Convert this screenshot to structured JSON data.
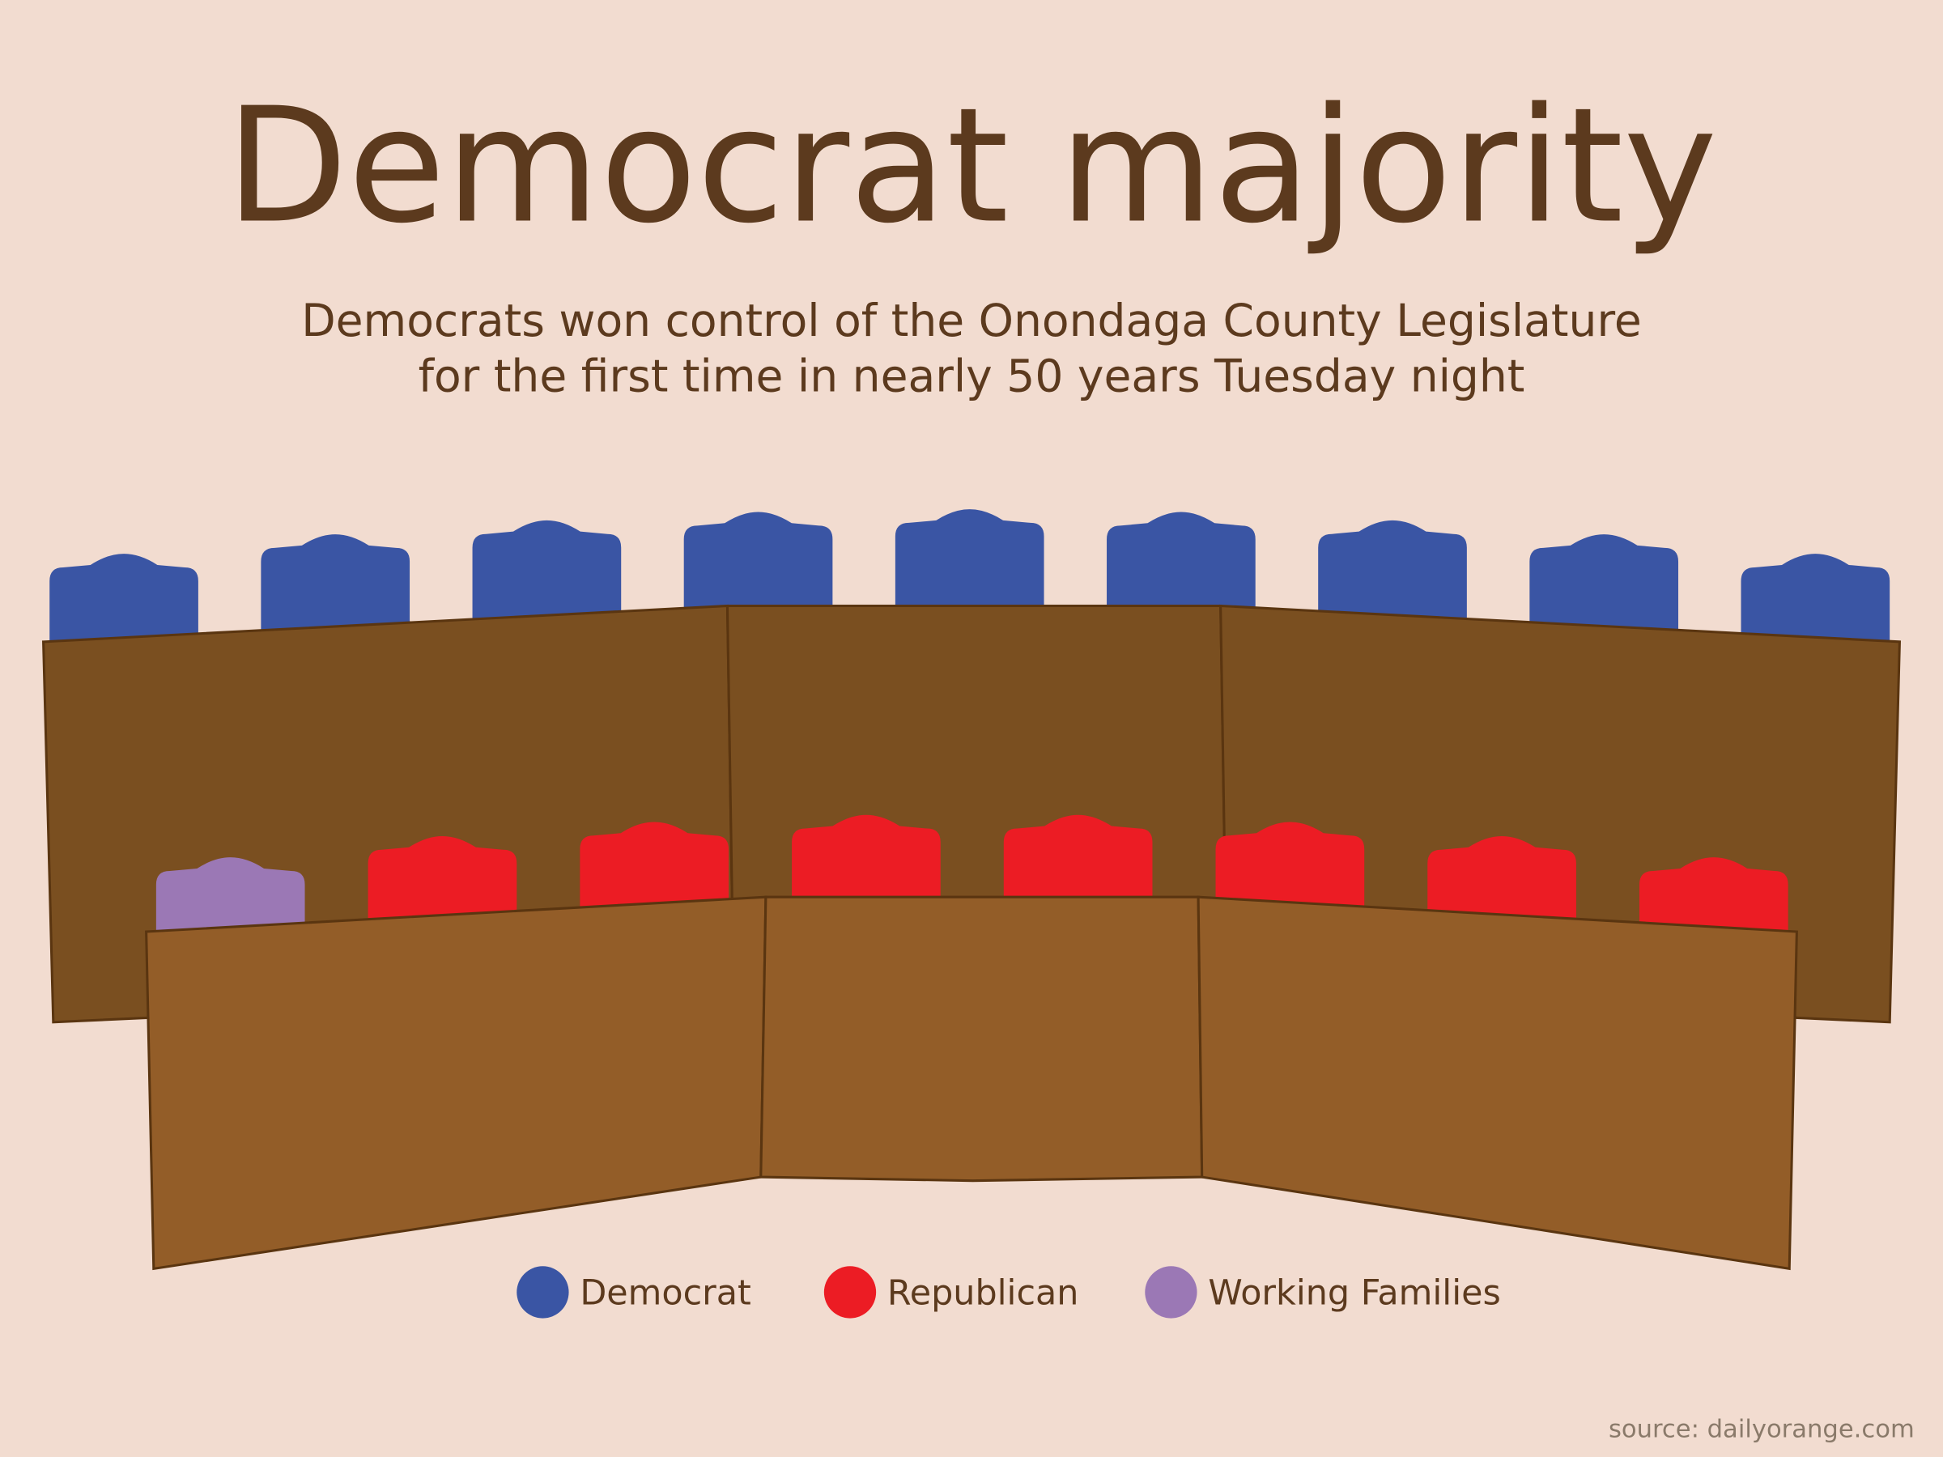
{
  "chart_data": {
    "type": "parliament",
    "title": "Democrat majority",
    "subtitle": [
      "Democrats won control of the Onondaga County Legislature",
      "for the first time in nearly 50 years Tuesday night"
    ],
    "categories": [
      "Democrat",
      "Republican",
      "Working Families"
    ],
    "values": [
      9,
      7,
      1
    ],
    "colors": [
      "#3a55a4",
      "#ec1c24",
      "#9b78b5"
    ],
    "source": "source: dailyorange.com"
  }
}
